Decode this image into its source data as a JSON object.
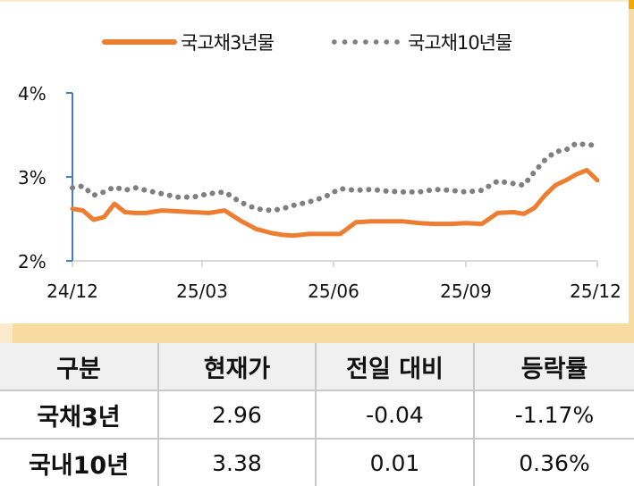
{
  "legend": {
    "series_3y": "국고채3년물",
    "series_10y": "국고채10년물"
  },
  "axes": {
    "y_ticks": [
      "4%",
      "3%",
      "2%"
    ],
    "x_ticks": [
      "24/12",
      "25/03",
      "25/06",
      "25/09",
      "25/12"
    ]
  },
  "colors": {
    "series_3y": "#ED7D31",
    "series_10y": "#7F7F7F",
    "y_axis": "#4A7EBB",
    "x_axis": "#D9D9D9",
    "band": "#F8DBA0",
    "header_bg": "#F0F0F0"
  },
  "table": {
    "headers": [
      "구분",
      "현재가",
      "전일 대비",
      "등락률"
    ],
    "rows": [
      {
        "name": "국채3년",
        "price": "2.96",
        "change": "-0.04",
        "rate": "-1.17%"
      },
      {
        "name": "국내10년",
        "price": "3.38",
        "change": "0.01",
        "rate": "0.36%"
      }
    ]
  },
  "chart_data": {
    "type": "line",
    "title": "",
    "xlabel": "",
    "ylabel": "",
    "ylim": [
      2,
      4
    ],
    "y_ticks": [
      2,
      3,
      4
    ],
    "x_ticks": [
      "24/12",
      "25/03",
      "25/06",
      "25/09",
      "25/12"
    ],
    "grid": false,
    "legend_position": "top",
    "x": [
      0.0,
      0.02,
      0.04,
      0.06,
      0.08,
      0.1,
      0.12,
      0.14,
      0.17,
      0.2,
      0.23,
      0.26,
      0.29,
      0.32,
      0.35,
      0.38,
      0.4,
      0.42,
      0.45,
      0.48,
      0.51,
      0.54,
      0.57,
      0.6,
      0.63,
      0.66,
      0.69,
      0.72,
      0.75,
      0.78,
      0.81,
      0.84,
      0.86,
      0.88,
      0.9,
      0.92,
      0.94,
      0.96,
      0.98,
      1.0
    ],
    "series": [
      {
        "name": "국고채3년물",
        "style": "solid",
        "color": "#ED7D31",
        "values": [
          2.62,
          2.6,
          2.49,
          2.52,
          2.68,
          2.58,
          2.57,
          2.57,
          2.6,
          2.59,
          2.58,
          2.57,
          2.6,
          2.48,
          2.38,
          2.33,
          2.31,
          2.3,
          2.32,
          2.32,
          2.32,
          2.46,
          2.47,
          2.47,
          2.47,
          2.45,
          2.44,
          2.44,
          2.45,
          2.44,
          2.57,
          2.58,
          2.56,
          2.63,
          2.78,
          2.9,
          2.96,
          3.03,
          3.08,
          2.96
        ]
      },
      {
        "name": "국고채10년물",
        "style": "dotted",
        "color": "#7F7F7F",
        "values": [
          2.87,
          2.89,
          2.78,
          2.82,
          2.88,
          2.84,
          2.87,
          2.84,
          2.8,
          2.76,
          2.76,
          2.8,
          2.82,
          2.7,
          2.62,
          2.6,
          2.62,
          2.66,
          2.7,
          2.76,
          2.86,
          2.84,
          2.85,
          2.83,
          2.82,
          2.82,
          2.85,
          2.84,
          2.82,
          2.84,
          2.95,
          2.92,
          2.9,
          3.06,
          3.2,
          3.3,
          3.32,
          3.4,
          3.38,
          3.38
        ]
      }
    ]
  }
}
